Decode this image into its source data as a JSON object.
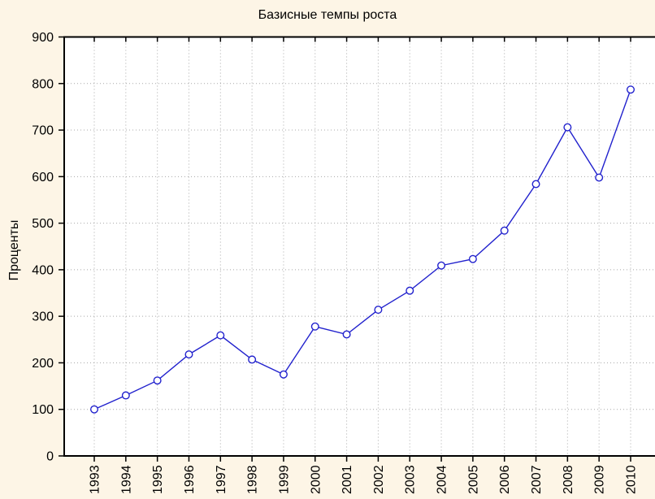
{
  "title": "Базисные темпы роста",
  "y_axis_title": "Проценты",
  "chart_data": {
    "type": "line",
    "title": "Базисные темпы роста",
    "xlabel": "",
    "ylabel": "Проценты",
    "x": [
      1993,
      1994,
      1995,
      1996,
      1997,
      1998,
      1999,
      2000,
      2001,
      2002,
      2003,
      2004,
      2005,
      2006,
      2007,
      2008,
      2009,
      2010
    ],
    "values": [
      100,
      130,
      162,
      218,
      259,
      207,
      175,
      278,
      261,
      314,
      355,
      409,
      423,
      484,
      584,
      706,
      598,
      787
    ],
    "ylim": [
      0,
      900
    ],
    "yticks": [
      0,
      100,
      200,
      300,
      400,
      500,
      600,
      700,
      800,
      900
    ],
    "grid": "dotted",
    "legend": "none",
    "marker": "open-circle",
    "colors": {
      "background": "#fdf5e6",
      "plot_bg": "#ffffff",
      "line": "#2121cd",
      "marker_fill": "#ffffff",
      "grid": "#a8a8a8",
      "axis": "#000000",
      "text": "#000000"
    }
  }
}
